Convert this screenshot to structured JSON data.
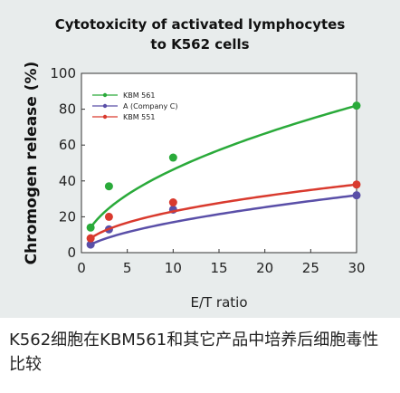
{
  "chart_data": {
    "type": "line",
    "title_lines": [
      "Cytotoxicity of activated lymphocytes",
      "to K562 cells"
    ],
    "xlabel": "E/T ratio",
    "ylabel": "Chromogen release (%)",
    "xlim": [
      0,
      30
    ],
    "ylim": [
      0,
      100
    ],
    "xticks": [
      0,
      5,
      10,
      15,
      20,
      25,
      30
    ],
    "yticks": [
      0,
      20,
      40,
      60,
      80,
      100
    ],
    "grid": false,
    "legend_position": "top-left",
    "series": [
      {
        "name": "KBM 561",
        "color": "#2aaa3a",
        "x": [
          1,
          3,
          10,
          30
        ],
        "y": [
          14,
          37,
          53,
          82
        ]
      },
      {
        "name": "A (Company C)",
        "color": "#5a4fa8",
        "x": [
          1,
          3,
          10,
          30
        ],
        "y": [
          4.5,
          13,
          24,
          32
        ]
      },
      {
        "name": "KBM 551",
        "color": "#d93a2e",
        "x": [
          1,
          3,
          10,
          30
        ],
        "y": [
          8,
          20,
          28,
          38
        ]
      }
    ]
  },
  "caption": "K562细胞在KBM561和其它产品中培养后细胞毒性比较"
}
